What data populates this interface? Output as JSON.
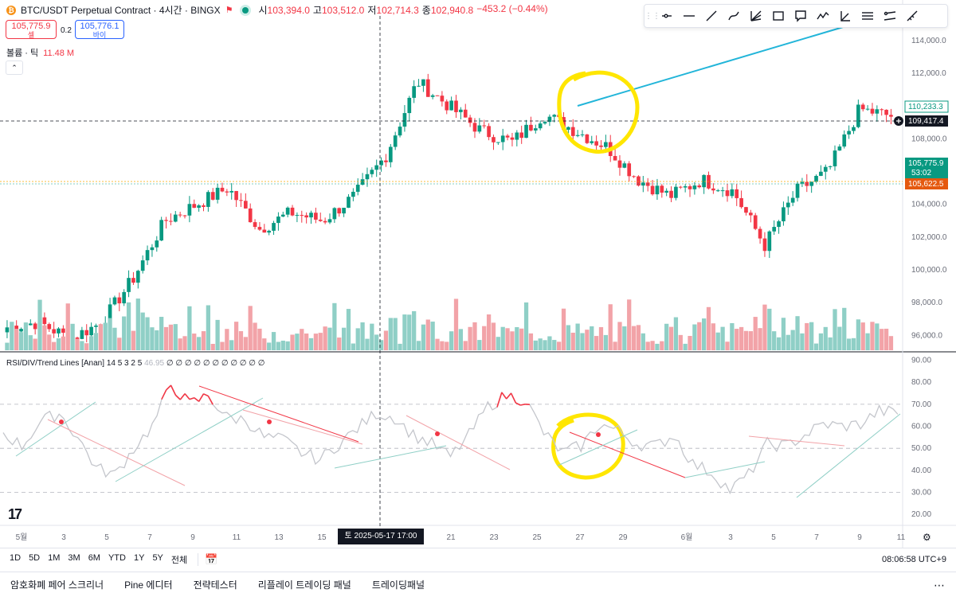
{
  "legend": {
    "logo_letter": "₿",
    "symbol": "BTC/USDT Perpetual Contract · 4시간 · BINGX",
    "flag_icon": "flag-icon",
    "ohlc": [
      {
        "k": "시",
        "v": "103,394.0"
      },
      {
        "k": "고",
        "v": "103,512.0"
      },
      {
        "k": "저",
        "v": "102,714.3"
      },
      {
        "k": "종",
        "v": "102,940.8"
      },
      {
        "k": "",
        "v": "−453.2 (−0.44%)"
      }
    ],
    "sell_price": "105,775.9",
    "sell_label": "셀",
    "spread": "0.2",
    "buy_price": "105,776.1",
    "buy_label": "바이",
    "volume_label": "볼륨 · 틱",
    "volume_value": "11.48 M"
  },
  "toolbar": {
    "icons": [
      "horizontal-ray-icon",
      "horizontal-line-icon",
      "trend-line-icon",
      "brush-icon",
      "fib-fan-icon",
      "rectangle-icon",
      "callout-icon",
      "path-icon",
      "angle-icon",
      "long-position-icon",
      "parallel-channel-icon",
      "ruler-icon"
    ]
  },
  "price_axis": {
    "ticks": [
      {
        "label": "114,000.0",
        "value": 114000
      },
      {
        "label": "112,000.0",
        "value": 112000
      },
      {
        "label": "108,000.0",
        "value": 108000
      },
      {
        "label": "104,000.0",
        "value": 104000
      },
      {
        "label": "102,000.0",
        "value": 102000
      },
      {
        "label": "100,000.0",
        "value": 100000
      },
      {
        "label": "98,000.0",
        "value": 98000
      },
      {
        "label": "96,000.0",
        "value": 96000
      }
    ],
    "tag_high": "110,233.3",
    "tag_cross": "109,417.4",
    "tag_last": "105,775.9",
    "tag_timer": "53:02",
    "tag_low": "105,622.5"
  },
  "rsi": {
    "title": "RSI/DIV/Trend Lines [Anan]",
    "params": "14 5 3 2 5",
    "value_dim": "46.95",
    "zeros": "∅ ∅ ∅ ∅ ∅ ∅ ∅ ∅ ∅ ∅ ∅",
    "ticks": [
      {
        "label": "90.00",
        "value": 90
      },
      {
        "label": "80.00",
        "value": 80
      },
      {
        "label": "70.00",
        "value": 70
      },
      {
        "label": "60.00",
        "value": 60
      },
      {
        "label": "50.00",
        "value": 50
      },
      {
        "label": "40.00",
        "value": 40
      },
      {
        "label": "30.00",
        "value": 30
      },
      {
        "label": "20.00",
        "value": 20
      }
    ]
  },
  "time_axis": {
    "labels": [
      "5월",
      "3",
      "5",
      "7",
      "9",
      "11",
      "13",
      "15",
      "21",
      "23",
      "25",
      "27",
      "29",
      "6월",
      "3",
      "5",
      "7",
      "9",
      "11"
    ],
    "crosshair": "토 2025-05-17   17:00"
  },
  "range_bar": {
    "items": [
      "1D",
      "5D",
      "1M",
      "3M",
      "6M",
      "YTD",
      "1Y",
      "5Y",
      "전체"
    ],
    "clock": "08:06:58 UTC+9"
  },
  "bottom_tabs": [
    "암호화폐 페어 스크리너",
    "Pine 에디터",
    "전략테스터",
    "리플레이 트레이딩 패널",
    "트레이딩패널"
  ],
  "colors": {
    "up": "#089981",
    "down": "#f23645",
    "up_vol": "#8fcfc6",
    "down_vol": "#f2a3a8",
    "highlight": "#ffe600",
    "trendline": "#22b5d9"
  },
  "chart_data": [
    {
      "type": "candlestick",
      "title": "BTC/USDT Perpetual Contract · 4시간 · BINGX",
      "ylim": [
        95000,
        115500
      ],
      "approx_path": [
        {
          "x": "5월 1",
          "close": 96500
        },
        {
          "x": "5월 3",
          "close": 96800
        },
        {
          "x": "5월 5",
          "close": 95800
        },
        {
          "x": "5월 7",
          "close": 96800
        },
        {
          "x": "5월 8",
          "close": 99500
        },
        {
          "x": "5월 9",
          "close": 103000
        },
        {
          "x": "5월 11",
          "close": 104000
        },
        {
          "x": "5월 12",
          "close": 105000
        },
        {
          "x": "5월 13",
          "close": 102500
        },
        {
          "x": "5월 15",
          "close": 103500
        },
        {
          "x": "5월 17",
          "close": 103000
        },
        {
          "x": "5월 19",
          "close": 104500
        },
        {
          "x": "5월 21",
          "close": 107000
        },
        {
          "x": "5월 22",
          "close": 111500
        },
        {
          "x": "5월 23",
          "close": 110000
        },
        {
          "x": "5월 24",
          "close": 108500
        },
        {
          "x": "5월 25",
          "close": 107800
        },
        {
          "x": "5월 27",
          "close": 109500
        },
        {
          "x": "5월 28",
          "close": 108500
        },
        {
          "x": "5월 29",
          "close": 107500
        },
        {
          "x": "5월 30",
          "close": 105500
        },
        {
          "x": "6월 1",
          "close": 104500
        },
        {
          "x": "6월 3",
          "close": 105500
        },
        {
          "x": "6월 4",
          "close": 104800
        },
        {
          "x": "6월 5",
          "close": 101500
        },
        {
          "x": "6월 7",
          "close": 104800
        },
        {
          "x": "6월 9",
          "close": 106000
        },
        {
          "x": "6월 10",
          "close": 109800
        },
        {
          "x": "6월 11",
          "close": 109400
        }
      ]
    },
    {
      "type": "line",
      "title": "RSI/DIV/Trend Lines [Anan]",
      "ylim": [
        15,
        92
      ],
      "approx_values": [
        57,
        51,
        62,
        66,
        55,
        41,
        38,
        50,
        60,
        79,
        70,
        74,
        64,
        63,
        55,
        54,
        48,
        45,
        52,
        59,
        66,
        64,
        56,
        52,
        46,
        56,
        69,
        74,
        72,
        57,
        48,
        51,
        61,
        58,
        52,
        51,
        56,
        43,
        39,
        31,
        38,
        52,
        51,
        56,
        61,
        60,
        61,
        67,
        66
      ]
    }
  ]
}
